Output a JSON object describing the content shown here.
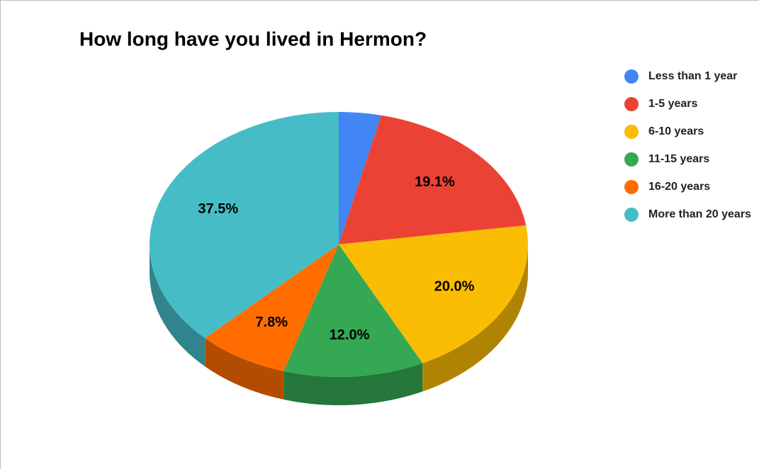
{
  "chart_data": {
    "type": "pie",
    "title": "How long have you lived in Hermon?",
    "categories": [
      "Less than 1 year",
      "1-5 years",
      "6-10 years",
      "11-15 years",
      "16-20 years",
      "More than 20 years"
    ],
    "values": [
      3.6,
      19.1,
      20.0,
      12.0,
      7.8,
      37.5
    ],
    "value_labels": [
      null,
      "19.1%",
      "20.0%",
      "12.0%",
      "7.8%",
      "37.5%"
    ],
    "colors": [
      "#4285f4",
      "#ea4335",
      "#fbbc04",
      "#34a853",
      "#ff6d01",
      "#46bdc6"
    ],
    "legend": "right",
    "three_d": true
  }
}
